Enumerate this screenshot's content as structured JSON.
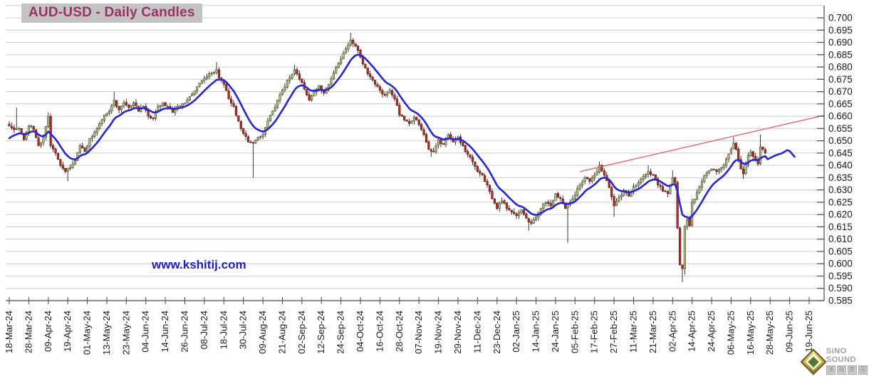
{
  "title": "AUD-USD - Daily Candles",
  "watermark": "www.kshitij.com",
  "branding": {
    "name": "SiNO SOUND",
    "cn": [
      "漢",
      "聲",
      "集",
      "團"
    ]
  },
  "chart_data": {
    "type": "candlestick",
    "title": "AUD-USD - Daily Candles",
    "xlabel": "",
    "ylabel": "",
    "ylim": [
      0.585,
      0.705
    ],
    "y_step": 0.005,
    "grid": "horizontal",
    "legend": "none",
    "y_tick_labels": [
      "0.700",
      "0.695",
      "0.690",
      "0.685",
      "0.680",
      "0.675",
      "0.670",
      "0.665",
      "0.660",
      "0.655",
      "0.650",
      "0.645",
      "0.640",
      "0.635",
      "0.630",
      "0.625",
      "0.620",
      "0.615",
      "0.610",
      "0.605",
      "0.600",
      "0.595",
      "0.590",
      "0.585"
    ],
    "x_tick_labels": [
      "18-Mar-24",
      "28-Mar-24",
      "09-Apr-24",
      "19-Apr-24",
      "01-May-24",
      "13-May-24",
      "23-May-24",
      "04-Jun-24",
      "14-Jun-24",
      "26-Jun-24",
      "08-Jul-24",
      "18-Jul-24",
      "30-Jul-24",
      "09-Aug-24",
      "21-Aug-24",
      "02-Sep-24",
      "12-Sep-24",
      "24-Sep-24",
      "04-Oct-24",
      "16-Oct-24",
      "28-Oct-24",
      "07-Nov-24",
      "19-Nov-24",
      "29-Nov-24",
      "11-Dec-24",
      "23-Dec-24",
      "02-Jan-25",
      "14-Jan-25",
      "24-Jan-25",
      "05-Feb-25",
      "17-Feb-25",
      "27-Feb-25",
      "11-Mar-25",
      "21-Mar-25",
      "02-Apr-25",
      "14-Apr-25",
      "24-Apr-25",
      "06-May-25",
      "16-May-25",
      "28-May-25",
      "09-Jun-25",
      "19-Jun-25"
    ],
    "candle_count": 311,
    "candles_per_x_tick": 8,
    "noise_seed": 11,
    "trajectory_close": [
      [
        0,
        0.656
      ],
      [
        2,
        0.6545
      ],
      [
        4,
        0.655
      ],
      [
        6,
        0.6505
      ],
      [
        8,
        0.656
      ],
      [
        10,
        0.6545
      ],
      [
        12,
        0.648
      ],
      [
        14,
        0.6515
      ],
      [
        16,
        0.66
      ],
      [
        17,
        0.648
      ],
      [
        19,
        0.645
      ],
      [
        21,
        0.64
      ],
      [
        23,
        0.6375
      ],
      [
        25,
        0.639
      ],
      [
        27,
        0.642
      ],
      [
        29,
        0.648
      ],
      [
        31,
        0.6455
      ],
      [
        33,
        0.651
      ],
      [
        35,
        0.6535
      ],
      [
        37,
        0.657
      ],
      [
        39,
        0.6605
      ],
      [
        41,
        0.662
      ],
      [
        43,
        0.6665
      ],
      [
        45,
        0.6625
      ],
      [
        47,
        0.6655
      ],
      [
        49,
        0.6635
      ],
      [
        51,
        0.6655
      ],
      [
        53,
        0.662
      ],
      [
        55,
        0.664
      ],
      [
        57,
        0.66
      ],
      [
        59,
        0.659
      ],
      [
        61,
        0.664
      ],
      [
        63,
        0.6655
      ],
      [
        65,
        0.664
      ],
      [
        67,
        0.6615
      ],
      [
        69,
        0.664
      ],
      [
        71,
        0.665
      ],
      [
        73,
        0.6665
      ],
      [
        75,
        0.669
      ],
      [
        77,
        0.672
      ],
      [
        79,
        0.6745
      ],
      [
        81,
        0.676
      ],
      [
        83,
        0.6775
      ],
      [
        85,
        0.679
      ],
      [
        86,
        0.6755
      ],
      [
        88,
        0.673
      ],
      [
        90,
        0.667
      ],
      [
        92,
        0.664
      ],
      [
        94,
        0.658
      ],
      [
        96,
        0.653
      ],
      [
        98,
        0.6495
      ],
      [
        100,
        0.649
      ],
      [
        102,
        0.6515
      ],
      [
        104,
        0.6525
      ],
      [
        106,
        0.658
      ],
      [
        108,
        0.662
      ],
      [
        110,
        0.6665
      ],
      [
        112,
        0.6705
      ],
      [
        114,
        0.6745
      ],
      [
        116,
        0.677
      ],
      [
        117,
        0.679
      ],
      [
        119,
        0.675
      ],
      [
        121,
        0.671
      ],
      [
        123,
        0.6665
      ],
      [
        125,
        0.67
      ],
      [
        127,
        0.6725
      ],
      [
        129,
        0.6695
      ],
      [
        131,
        0.673
      ],
      [
        133,
        0.6775
      ],
      [
        135,
        0.6815
      ],
      [
        137,
        0.6855
      ],
      [
        139,
        0.689
      ],
      [
        140,
        0.691
      ],
      [
        142,
        0.6885
      ],
      [
        144,
        0.684
      ],
      [
        146,
        0.6795
      ],
      [
        148,
        0.676
      ],
      [
        150,
        0.673
      ],
      [
        152,
        0.6705
      ],
      [
        154,
        0.6685
      ],
      [
        156,
        0.6705
      ],
      [
        158,
        0.667
      ],
      [
        160,
        0.6605
      ],
      [
        162,
        0.6585
      ],
      [
        164,
        0.657
      ],
      [
        166,
        0.6595
      ],
      [
        168,
        0.6565
      ],
      [
        170,
        0.6525
      ],
      [
        172,
        0.6465
      ],
      [
        174,
        0.6455
      ],
      [
        176,
        0.6505
      ],
      [
        178,
        0.6485
      ],
      [
        180,
        0.6525
      ],
      [
        182,
        0.6495
      ],
      [
        184,
        0.6515
      ],
      [
        186,
        0.648
      ],
      [
        188,
        0.6445
      ],
      [
        190,
        0.6415
      ],
      [
        192,
        0.6375
      ],
      [
        194,
        0.636
      ],
      [
        196,
        0.632
      ],
      [
        198,
        0.6265
      ],
      [
        200,
        0.6225
      ],
      [
        202,
        0.6255
      ],
      [
        204,
        0.6225
      ],
      [
        206,
        0.621
      ],
      [
        208,
        0.6195
      ],
      [
        210,
        0.622
      ],
      [
        212,
        0.6185
      ],
      [
        214,
        0.6165
      ],
      [
        216,
        0.619
      ],
      [
        218,
        0.6225
      ],
      [
        220,
        0.625
      ],
      [
        222,
        0.6235
      ],
      [
        224,
        0.6285
      ],
      [
        226,
        0.6265
      ],
      [
        228,
        0.6225
      ],
      [
        230,
        0.625
      ],
      [
        232,
        0.628
      ],
      [
        234,
        0.632
      ],
      [
        236,
        0.635
      ],
      [
        238,
        0.6335
      ],
      [
        240,
        0.636
      ],
      [
        242,
        0.64
      ],
      [
        244,
        0.636
      ],
      [
        246,
        0.631
      ],
      [
        248,
        0.6235
      ],
      [
        250,
        0.627
      ],
      [
        252,
        0.6295
      ],
      [
        254,
        0.6275
      ],
      [
        256,
        0.6315
      ],
      [
        258,
        0.633
      ],
      [
        260,
        0.6355
      ],
      [
        262,
        0.6375
      ],
      [
        264,
        0.636
      ],
      [
        266,
        0.632
      ],
      [
        268,
        0.6295
      ],
      [
        270,
        0.6285
      ],
      [
        271,
        0.632
      ],
      [
        272,
        0.635
      ],
      [
        273,
        0.633
      ],
      [
        274,
        0.6145
      ],
      [
        275,
        0.5995
      ],
      [
        276,
        0.598
      ],
      [
        277,
        0.615
      ],
      [
        278,
        0.618
      ],
      [
        279,
        0.6155
      ],
      [
        280,
        0.625
      ],
      [
        282,
        0.629
      ],
      [
        284,
        0.6335
      ],
      [
        286,
        0.637
      ],
      [
        288,
        0.6385
      ],
      [
        290,
        0.6375
      ],
      [
        292,
        0.639
      ],
      [
        294,
        0.6425
      ],
      [
        296,
        0.6465
      ],
      [
        297,
        0.649
      ],
      [
        298,
        0.6465
      ],
      [
        299,
        0.6425
      ],
      [
        300,
        0.6385
      ],
      [
        301,
        0.6365
      ],
      [
        303,
        0.644
      ],
      [
        304,
        0.6455
      ],
      [
        306,
        0.6425
      ],
      [
        307,
        0.6405
      ],
      [
        308,
        0.6475
      ],
      [
        309,
        0.6465
      ],
      [
        310,
        0.645
      ]
    ],
    "wick_low_overrides": [
      [
        24,
        0.6335
      ],
      [
        100,
        0.635
      ],
      [
        173,
        0.6435
      ],
      [
        213,
        0.6135
      ],
      [
        229,
        0.6085
      ],
      [
        248,
        0.619
      ],
      [
        276,
        0.5925
      ],
      [
        277,
        0.5955
      ],
      [
        301,
        0.6345
      ]
    ],
    "wick_high_overrides": [
      [
        3,
        0.6635
      ],
      [
        16,
        0.6615
      ],
      [
        43,
        0.67
      ],
      [
        85,
        0.682
      ],
      [
        117,
        0.681
      ],
      [
        140,
        0.694
      ],
      [
        242,
        0.6415
      ],
      [
        262,
        0.64
      ],
      [
        272,
        0.638
      ],
      [
        297,
        0.6515
      ],
      [
        308,
        0.6525
      ]
    ],
    "moving_average": {
      "type": "EMA",
      "period": 11,
      "seed_value": 0.65,
      "forecast_extension": [
        [
          311,
          0.6425
        ],
        [
          314,
          0.644
        ],
        [
          317,
          0.645
        ],
        [
          319,
          0.6462
        ],
        [
          320,
          0.6458
        ],
        [
          322,
          0.6435
        ]
      ]
    },
    "trendline": {
      "from_index": 234,
      "from_price": 0.6375,
      "to_index": 334,
      "to_price": 0.6603
    },
    "colors": {
      "up_candle": "#aebf7f",
      "up_candle_border": "#45452c",
      "down_candle": "#b23028",
      "down_candle_border": "#551515",
      "wick": "#222222",
      "moving_average": "#2727cc",
      "trendline": "#e36a6a",
      "grid": "#cccccc",
      "axis": "#4a4a4a",
      "tick_text": "#1a1a1a",
      "title_text": "#993366",
      "title_bg": "#c3c3c3",
      "watermark_text": "#1f1fc0"
    }
  }
}
